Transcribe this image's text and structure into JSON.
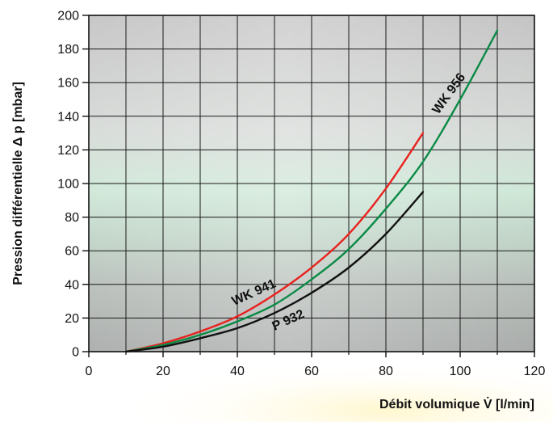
{
  "chart_data": {
    "type": "line",
    "xlabel": "Débit volumique V̇ [l/min]",
    "ylabel": "Pression différentielle Δ p [mbar]",
    "xlim": [
      0,
      120
    ],
    "ylim": [
      0,
      200
    ],
    "xticks": [
      "0",
      "20",
      "40",
      "60",
      "80",
      "100",
      "120"
    ],
    "yticks": [
      "0",
      "20",
      "40",
      "60",
      "80",
      "100",
      "120",
      "140",
      "160",
      "180",
      "200"
    ],
    "grid": true,
    "series": [
      {
        "name": "WK 941",
        "color": "#e8221e",
        "x": [
          10,
          20,
          30,
          40,
          50,
          60,
          70,
          80,
          90
        ],
        "y": [
          0,
          5,
          12,
          21,
          34,
          50,
          70,
          97,
          130
        ]
      },
      {
        "name": "WK 956",
        "color": "#0a8a45",
        "x": [
          10,
          20,
          30,
          40,
          50,
          60,
          70,
          80,
          90,
          100,
          110
        ],
        "y": [
          0,
          4,
          10,
          18,
          28,
          43,
          61,
          85,
          113,
          150,
          191
        ]
      },
      {
        "name": "P 932",
        "color": "#111111",
        "x": [
          10,
          20,
          30,
          40,
          50,
          60,
          70,
          80,
          90
        ],
        "y": [
          0,
          3,
          8,
          14,
          23,
          35,
          50,
          70,
          95
        ]
      }
    ]
  }
}
